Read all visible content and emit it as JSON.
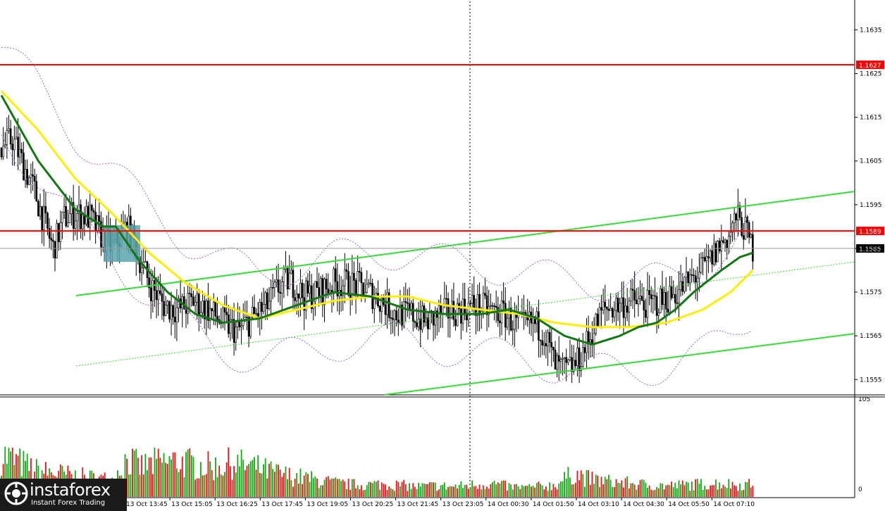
{
  "chart_data": {
    "type": "candlestick",
    "price_axis": {
      "ticks": [
        "1.1635",
        "1.1625",
        "1.1615",
        "1.1605",
        "1.1595",
        "1.1585",
        "1.1575",
        "1.1565",
        "1.1555"
      ],
      "range": [
        1.15515,
        1.16415
      ]
    },
    "volume_axis": {
      "ticks": [
        "105",
        "0"
      ],
      "range": [
        0,
        105
      ]
    },
    "time_labels": [
      "13 Oct 13:45",
      "13 Oct 15:05",
      "13 Oct 16:25",
      "13 Oct 17:45",
      "13 Oct 19:05",
      "13 Oct 20:25",
      "13 Oct 21:45",
      "13 Oct 23:05",
      "14 Oct 00:30",
      "14 Oct 01:50",
      "14 Oct 03:10",
      "14 Oct 04:30",
      "14 Oct 05:50",
      "14 Oct 07:10"
    ],
    "horizontal_levels": [
      {
        "price": 1.1627,
        "label": "1.1627",
        "color": "#ff0000"
      },
      {
        "price": 1.1589,
        "label": "1.1589",
        "color": "#ff0000"
      }
    ],
    "current_price": {
      "price": 1.1585,
      "label": "1.1585"
    },
    "price_anchors": [
      [
        0,
        1.1608
      ],
      [
        6,
        1.161
      ],
      [
        12,
        1.1604
      ],
      [
        18,
        1.1598
      ],
      [
        24,
        1.159
      ],
      [
        28,
        1.1585
      ],
      [
        34,
        1.1592
      ],
      [
        40,
        1.1593
      ],
      [
        48,
        1.1592
      ],
      [
        54,
        1.1588
      ],
      [
        60,
        1.1585
      ],
      [
        68,
        1.159
      ],
      [
        72,
        1.1586
      ],
      [
        80,
        1.1577
      ],
      [
        88,
        1.1572
      ],
      [
        96,
        1.1571
      ],
      [
        104,
        1.1573
      ],
      [
        112,
        1.1571
      ],
      [
        120,
        1.1568
      ],
      [
        128,
        1.1566
      ],
      [
        136,
        1.1569
      ],
      [
        144,
        1.1572
      ],
      [
        150,
        1.1576
      ],
      [
        156,
        1.1578
      ],
      [
        164,
        1.1574
      ],
      [
        172,
        1.1575
      ],
      [
        180,
        1.1577
      ],
      [
        188,
        1.1577
      ],
      [
        196,
        1.1576
      ],
      [
        206,
        1.1573
      ],
      [
        214,
        1.157
      ],
      [
        222,
        1.157
      ],
      [
        230,
        1.1568
      ],
      [
        238,
        1.157
      ],
      [
        248,
        1.1571
      ],
      [
        256,
        1.1572
      ],
      [
        264,
        1.1571
      ],
      [
        272,
        1.157
      ],
      [
        282,
        1.1567
      ],
      [
        288,
        1.1568
      ],
      [
        294,
        1.1566
      ],
      [
        300,
        1.1558
      ],
      [
        306,
        1.1557
      ],
      [
        312,
        1.1559
      ],
      [
        318,
        1.1564
      ],
      [
        326,
        1.1571
      ],
      [
        334,
        1.1572
      ],
      [
        342,
        1.1573
      ],
      [
        350,
        1.1572
      ],
      [
        358,
        1.1573
      ],
      [
        366,
        1.1575
      ],
      [
        374,
        1.1578
      ],
      [
        382,
        1.1581
      ],
      [
        388,
        1.1585
      ],
      [
        394,
        1.1588
      ],
      [
        398,
        1.1592
      ],
      [
        402,
        1.159
      ],
      [
        407,
        1.1585
      ]
    ],
    "ma_fast_anchors": [
      [
        0,
        1.162
      ],
      [
        20,
        1.1605
      ],
      [
        40,
        1.1594
      ],
      [
        55,
        1.159
      ],
      [
        62,
        1.159
      ],
      [
        75,
        1.1582
      ],
      [
        90,
        1.1575
      ],
      [
        105,
        1.157
      ],
      [
        120,
        1.1568
      ],
      [
        140,
        1.1569
      ],
      [
        160,
        1.1572
      ],
      [
        180,
        1.1575
      ],
      [
        200,
        1.1574
      ],
      [
        220,
        1.1571
      ],
      [
        240,
        1.157
      ],
      [
        260,
        1.157
      ],
      [
        275,
        1.1571
      ],
      [
        290,
        1.1569
      ],
      [
        305,
        1.1565
      ],
      [
        320,
        1.1563
      ],
      [
        335,
        1.1565
      ],
      [
        345,
        1.1567
      ],
      [
        355,
        1.1568
      ],
      [
        365,
        1.1571
      ],
      [
        375,
        1.1575
      ],
      [
        390,
        1.158
      ],
      [
        400,
        1.1583
      ],
      [
        407,
        1.1584
      ]
    ],
    "ma_slow_anchors": [
      [
        0,
        1.1621
      ],
      [
        20,
        1.1612
      ],
      [
        40,
        1.1601
      ],
      [
        60,
        1.1593
      ],
      [
        80,
        1.1584
      ],
      [
        100,
        1.1577
      ],
      [
        120,
        1.1572
      ],
      [
        140,
        1.1569
      ],
      [
        160,
        1.1571
      ],
      [
        180,
        1.1573
      ],
      [
        200,
        1.1574
      ],
      [
        220,
        1.1574
      ],
      [
        240,
        1.1572
      ],
      [
        260,
        1.1571
      ],
      [
        280,
        1.157
      ],
      [
        300,
        1.1568
      ],
      [
        320,
        1.1567
      ],
      [
        340,
        1.1567
      ],
      [
        360,
        1.1568
      ],
      [
        380,
        1.1571
      ],
      [
        395,
        1.1575
      ],
      [
        407,
        1.158
      ]
    ],
    "volume_anchors": [
      [
        0,
        50
      ],
      [
        10,
        40
      ],
      [
        20,
        30
      ],
      [
        30,
        28
      ],
      [
        40,
        24
      ],
      [
        50,
        22
      ],
      [
        60,
        20
      ],
      [
        68,
        45
      ],
      [
        75,
        35
      ],
      [
        85,
        40
      ],
      [
        95,
        42
      ],
      [
        105,
        38
      ],
      [
        115,
        35
      ],
      [
        125,
        40
      ],
      [
        135,
        36
      ],
      [
        145,
        30
      ],
      [
        155,
        25
      ],
      [
        165,
        22
      ],
      [
        175,
        18
      ],
      [
        185,
        15
      ],
      [
        195,
        14
      ],
      [
        205,
        15
      ],
      [
        215,
        14
      ],
      [
        225,
        12
      ],
      [
        235,
        13
      ],
      [
        245,
        12
      ],
      [
        255,
        14
      ],
      [
        265,
        16
      ],
      [
        275,
        12
      ],
      [
        285,
        11
      ],
      [
        300,
        14
      ],
      [
        310,
        28
      ],
      [
        320,
        20
      ],
      [
        330,
        18
      ],
      [
        340,
        16
      ],
      [
        350,
        14
      ],
      [
        360,
        13
      ],
      [
        370,
        14
      ],
      [
        380,
        15
      ],
      [
        390,
        16
      ],
      [
        400,
        14
      ],
      [
        407,
        15
      ]
    ],
    "candles_visible": 408,
    "grid": "vertical dotted separator at session break",
    "annotations": [
      "highlighted entry box",
      "ascending channel lines (light green)"
    ]
  },
  "logo": {
    "name": "instaforex",
    "tagline": "Instant Forex Trading"
  }
}
